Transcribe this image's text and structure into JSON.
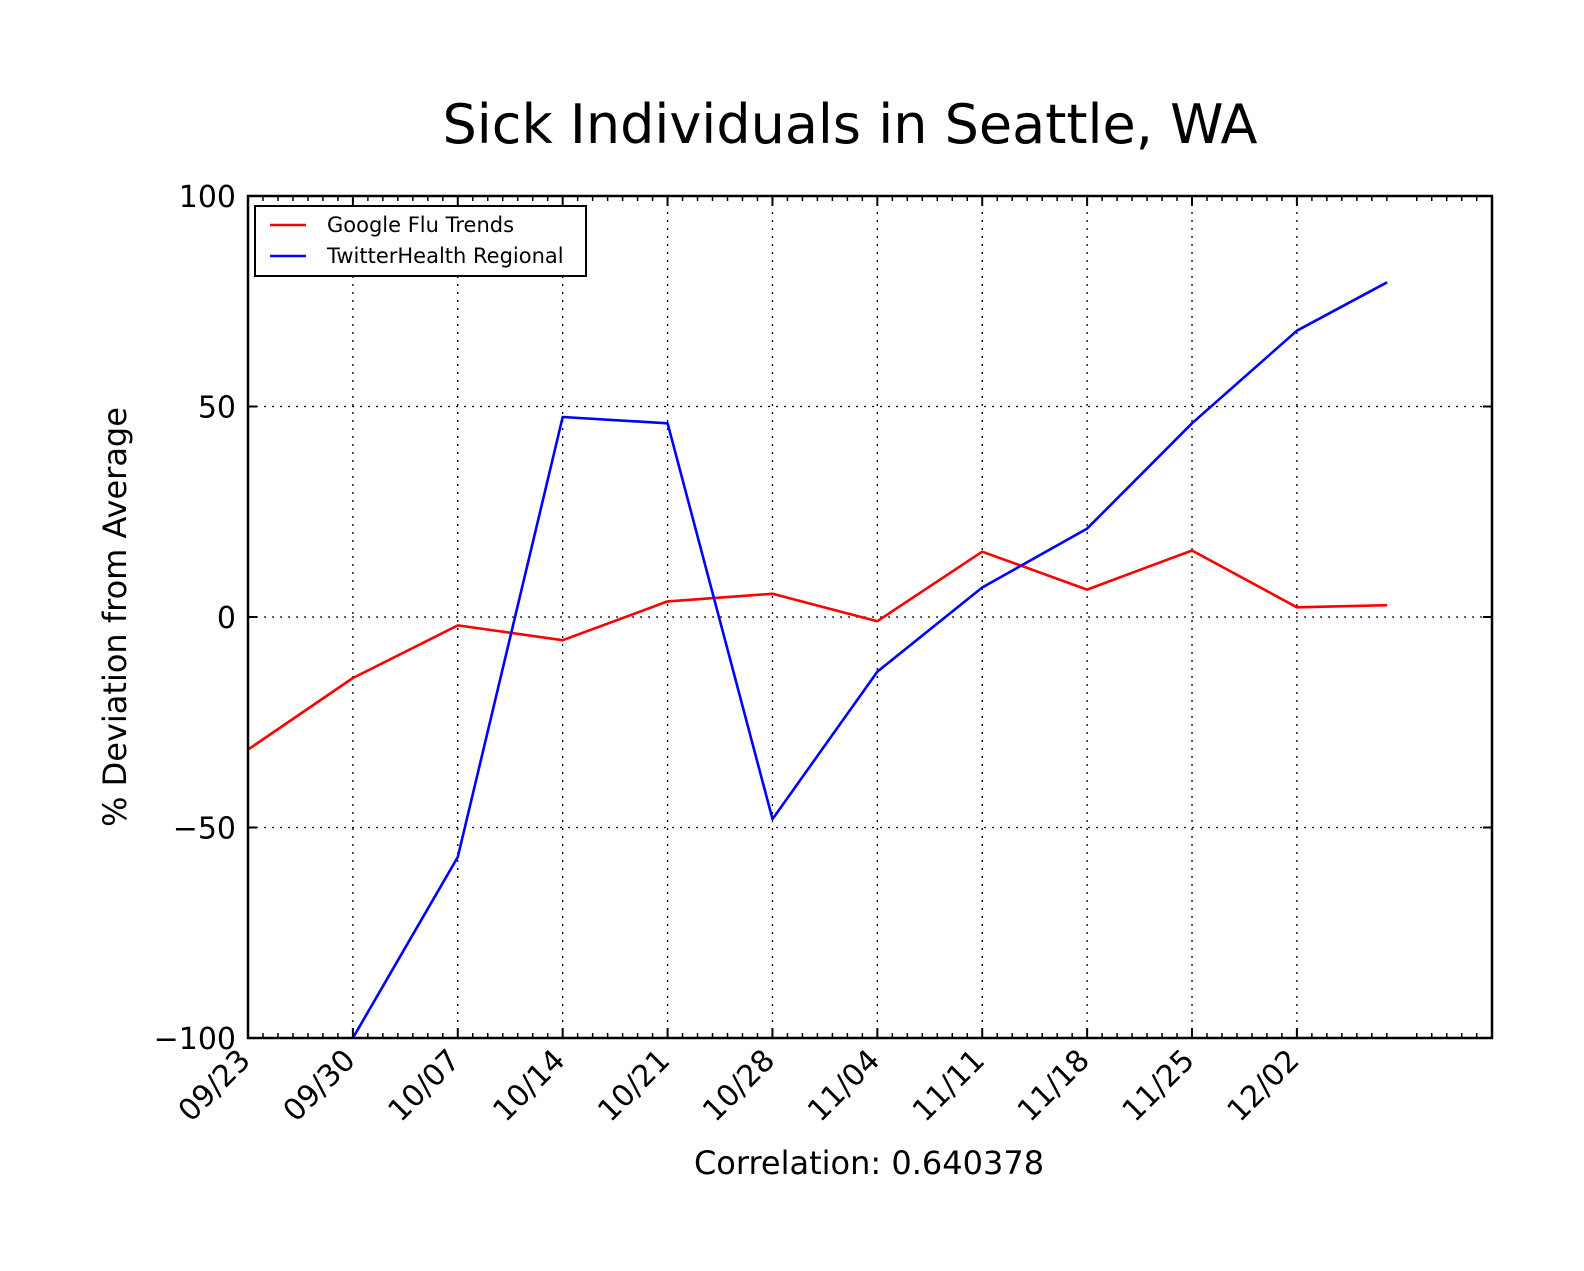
{
  "chart_data": {
    "type": "line",
    "title": "Sick Individuals in Seattle, WA",
    "xlabel": "Correlation: 0.640378",
    "ylabel": "% Deviation from Average",
    "ylim": [
      -100,
      100
    ],
    "yticks": [
      100,
      50,
      0,
      -50,
      -100
    ],
    "ytick_labels": [
      "100",
      "50",
      "0",
      "−50",
      "−100"
    ],
    "categories": [
      "09/23",
      "09/30",
      "10/07",
      "10/14",
      "10/21",
      "10/28",
      "11/04",
      "11/11",
      "11/18",
      "11/25",
      "12/02"
    ],
    "x_extent_weeks": 11.86,
    "grid": true,
    "grid_style": "dotted",
    "legend": "top-left",
    "series": [
      {
        "name": "Google Flu Trends",
        "color": "#ff0000",
        "x": [
          0,
          1,
          2,
          3,
          4,
          5,
          6,
          7,
          8,
          9,
          10,
          10.86
        ],
        "values": [
          -31.5,
          -14.5,
          -2,
          -5.5,
          3.7,
          5.5,
          -1,
          15.5,
          6.5,
          15.8,
          2.3,
          2.8
        ]
      },
      {
        "name": "TwitterHealth Regional",
        "color": "#0000ff",
        "x": [
          1,
          2,
          3,
          4,
          5,
          6,
          7,
          8,
          9,
          10,
          10.86
        ],
        "values": [
          -100,
          -57,
          47.5,
          46,
          -48,
          -13,
          7,
          21,
          46,
          68,
          79.5
        ]
      }
    ]
  }
}
